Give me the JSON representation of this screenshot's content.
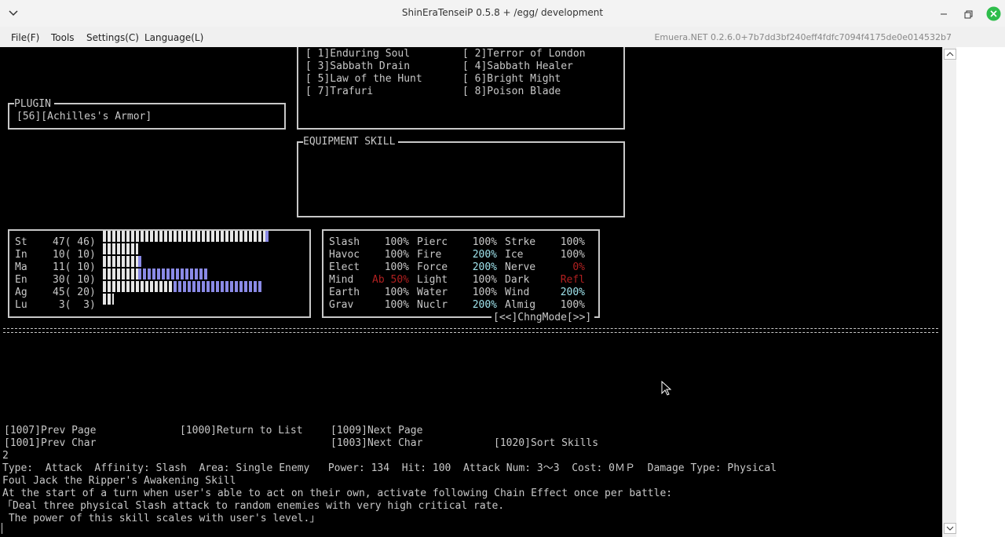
{
  "window": {
    "title": "ShinEraTenseiP 0.5.8 + /egg/ development",
    "menu": [
      "File(F)",
      "Tools",
      "Settings(C)",
      "Language(L)"
    ],
    "version": "Emuera.NET 0.2.6.0+7b7dd3bf240eff4fdfc7094f4175de0e014532b7"
  },
  "skills": [
    "[ 1]Enduring Soul",
    "[ 2]Terror of London",
    "[ 3]Sabbath Drain",
    "[ 4]Sabbath Healer",
    "[ 5]Law of the Hunt",
    "[ 6]Bright Might",
    "[ 7]Trafuri",
    "[ 8]Poison Blade"
  ],
  "plugin": {
    "title": "PLUGIN",
    "items": [
      "[56][Achilles's Armor]"
    ]
  },
  "equipment_skill": {
    "title": "EQUIPMENT SKILL"
  },
  "stats": [
    {
      "name": "St",
      "value": 47,
      "base": 46,
      "label": "47( 46)"
    },
    {
      "name": "In",
      "value": 10,
      "base": 10,
      "label": "10( 10)"
    },
    {
      "name": "Ma",
      "value": 11,
      "base": 10,
      "label": "11( 10)"
    },
    {
      "name": "En",
      "value": 30,
      "base": 10,
      "label": "30( 10)"
    },
    {
      "name": "Ag",
      "value": 45,
      "base": 20,
      "label": "45( 20)"
    },
    {
      "name": "Lu",
      "value": 3,
      "base": 3,
      "label": " 3(  3)"
    }
  ],
  "affinities": {
    "rows": [
      [
        {
          "name": "Slash",
          "value": "100%",
          "color": "#c8c8c8"
        },
        {
          "name": "Pierc",
          "value": "100%",
          "color": "#c8c8c8"
        },
        {
          "name": "Strke",
          "value": "100%",
          "color": "#c8c8c8"
        }
      ],
      [
        {
          "name": "Havoc",
          "value": "100%",
          "color": "#c8c8c8"
        },
        {
          "name": "Fire",
          "value": "200%",
          "color": "#9fe3ec"
        },
        {
          "name": "Ice",
          "value": "100%",
          "color": "#c8c8c8"
        }
      ],
      [
        {
          "name": "Elect",
          "value": "100%",
          "color": "#c8c8c8"
        },
        {
          "name": "Force",
          "value": "200%",
          "color": "#9fe3ec"
        },
        {
          "name": "Nerve",
          "value": "0%",
          "color": "#b02020"
        }
      ],
      [
        {
          "name": "Mind",
          "value": "Ab 50%",
          "color": "#b02020"
        },
        {
          "name": "Light",
          "value": "100%",
          "color": "#c8c8c8"
        },
        {
          "name": "Dark",
          "value": "Refl",
          "color": "#b02020"
        }
      ],
      [
        {
          "name": "Earth",
          "value": "100%",
          "color": "#c8c8c8"
        },
        {
          "name": "Water",
          "value": "100%",
          "color": "#c8c8c8"
        },
        {
          "name": "Wind",
          "value": "200%",
          "color": "#9fe3ec"
        }
      ],
      [
        {
          "name": "Grav",
          "value": "100%",
          "color": "#c8c8c8"
        },
        {
          "name": "Nuclr",
          "value": "200%",
          "color": "#9fe3ec"
        },
        {
          "name": "Almig",
          "value": "100%",
          "color": "#c8c8c8"
        }
      ]
    ],
    "mode_button": "[<<]ChngMode[>>]"
  },
  "commands": [
    "[1007]Prev Page",
    "[1000]Return to List",
    "[1009]Next Page",
    "[1001]Prev Char",
    "[1003]Next Char",
    "[1020]Sort Skills"
  ],
  "input": "2",
  "description": [
    "Type:  Attack  Affinity: Slash  Area: Single Enemy   Power: 134  Hit: 100  Attack Num: 3～3  Cost: 0ＭＰ  Damage Type: Physical",
    "Foul Jack the Ripper's Awakening Skill",
    "At the start of a turn when user's able to act on their own, activate following Chain Effect once per battle:",
    "「Deal three physical Slash attack to random enemies with very high critical rate.",
    " The power of this skill scales with user's level.」"
  ]
}
